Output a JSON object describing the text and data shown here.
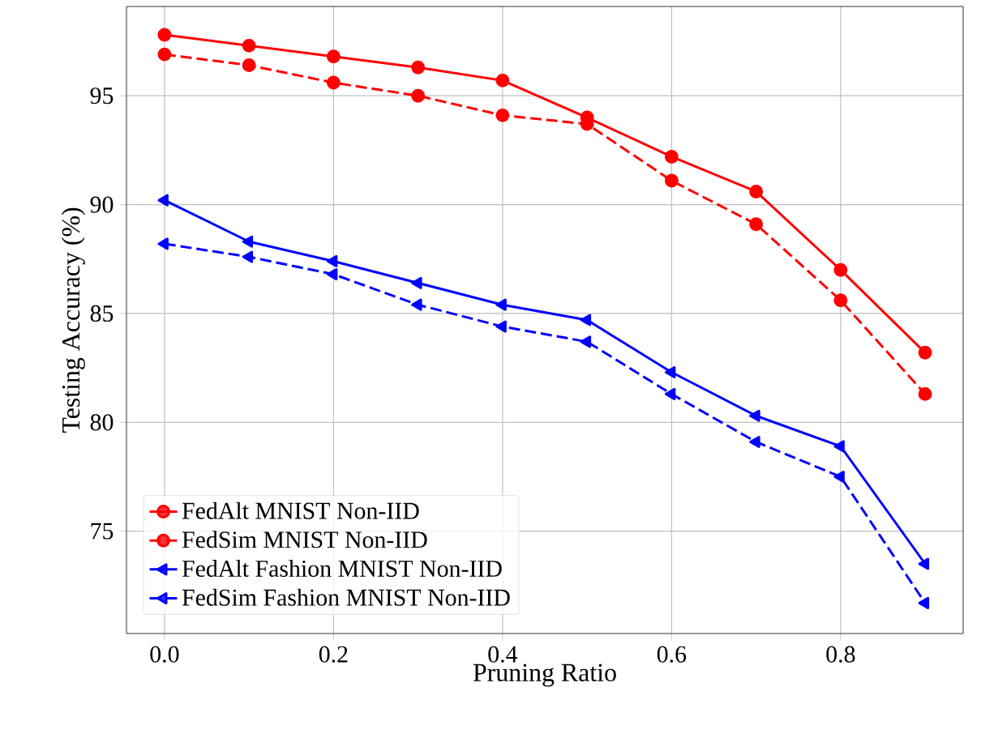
{
  "chart_data": {
    "type": "line",
    "xlabel": "Pruning Ratio",
    "ylabel": "Testing  Accuracy (%)",
    "x": [
      0.0,
      0.1,
      0.2,
      0.3,
      0.4,
      0.5,
      0.6,
      0.7,
      0.8,
      0.9
    ],
    "xlim": [
      -0.045,
      0.945
    ],
    "xticks": [
      {
        "value": 0.0,
        "label": "0.0"
      },
      0.2,
      0.4,
      0.6,
      0.8
    ],
    "ylim": [
      70.3,
      99.1
    ],
    "yticks": [
      75,
      80,
      85,
      90,
      95
    ],
    "grid": true,
    "legend": "bottom left",
    "series": [
      {
        "name": "FedAlt MNIST Non-IID",
        "color": "#ff0000",
        "marker": "circle",
        "line_style": "solid",
        "values": [
          97.8,
          97.3,
          96.8,
          96.3,
          95.7,
          94.0,
          92.2,
          90.6,
          87.0,
          83.2
        ]
      },
      {
        "name": "FedSim MNIST Non-IID",
        "color": "#ff0000",
        "marker": "circle",
        "line_style": "dashed",
        "values": [
          96.9,
          96.4,
          95.6,
          95.0,
          94.1,
          93.7,
          91.1,
          89.1,
          85.6,
          81.3
        ]
      },
      {
        "name": "FedAlt Fashion MNIST Non-IID",
        "color": "#0000ff",
        "marker": "triangle",
        "line_style": "solid",
        "values": [
          90.2,
          88.3,
          87.4,
          86.4,
          85.4,
          84.7,
          82.3,
          80.3,
          78.9,
          73.5
        ]
      },
      {
        "name": "FedSim Fashion MNIST Non-IID",
        "color": "#0000ff",
        "marker": "triangle",
        "line_style": "dashed",
        "values": [
          88.2,
          87.6,
          86.8,
          85.4,
          84.4,
          83.7,
          81.3,
          79.1,
          77.5,
          71.7
        ]
      }
    ]
  }
}
